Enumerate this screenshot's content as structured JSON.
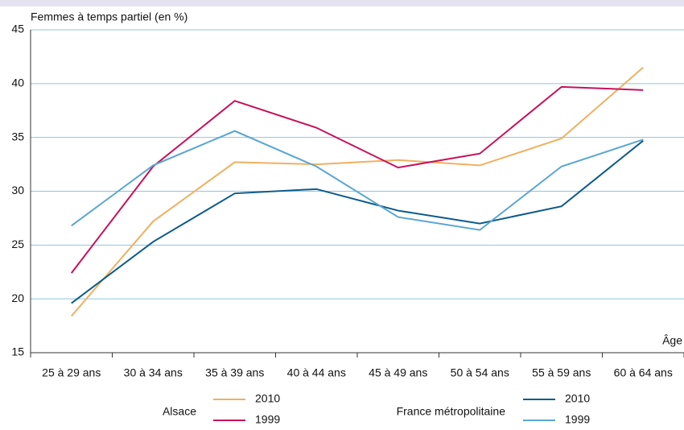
{
  "chart_data": {
    "type": "line",
    "y_label": "Femmes à temps partiel (en %)",
    "x_label": "Âge",
    "categories": [
      "25 à 29 ans",
      "30 à 34 ans",
      "35 à 39 ans",
      "40 à 44 ans",
      "45 à 49 ans",
      "50 à 54 ans",
      "55 à 59 ans",
      "60 à 64 ans"
    ],
    "series": [
      {
        "group": "Alsace",
        "name": "2010",
        "color": "#f0b060",
        "values": [
          18.4,
          27.2,
          32.7,
          32.5,
          32.9,
          32.4,
          34.9,
          41.5
        ]
      },
      {
        "group": "Alsace",
        "name": "1999",
        "color": "#c8105a",
        "values": [
          22.4,
          32.3,
          38.4,
          35.9,
          32.2,
          33.5,
          39.7,
          39.4
        ]
      },
      {
        "group": "France métropolitaine",
        "name": "2010",
        "color": "#0b5a8c",
        "values": [
          19.6,
          25.3,
          29.8,
          30.2,
          28.2,
          27.0,
          28.6,
          34.7
        ]
      },
      {
        "group": "France métropolitaine",
        "name": "1999",
        "color": "#5aa6d2",
        "values": [
          26.8,
          32.4,
          35.6,
          32.3,
          27.6,
          26.4,
          32.3,
          34.8
        ]
      }
    ],
    "ylim": [
      15,
      45
    ],
    "yticks": [
      15,
      20,
      25,
      30,
      35,
      40,
      45
    ],
    "grid": true
  }
}
